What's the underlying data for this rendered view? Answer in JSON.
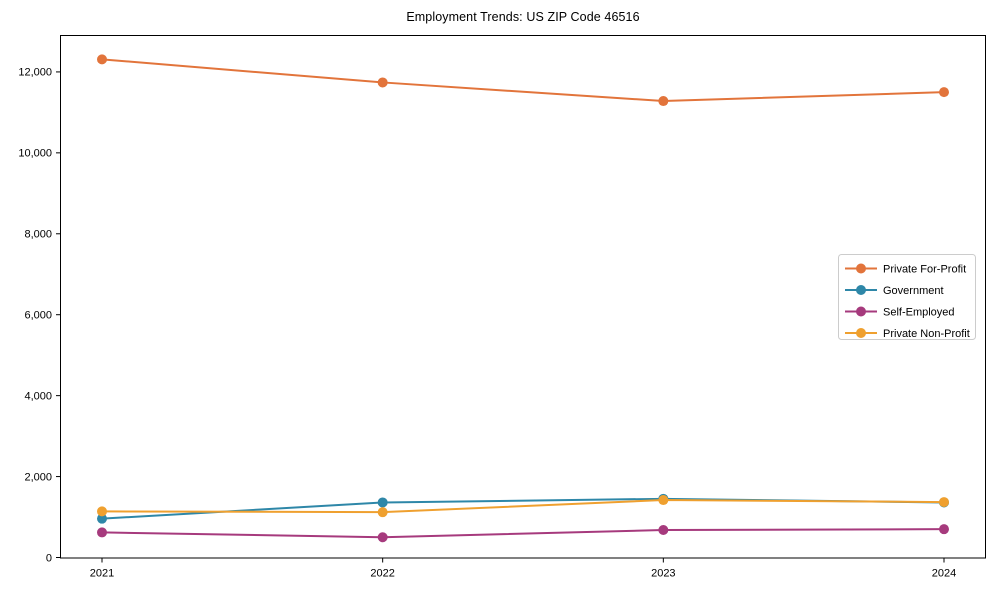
{
  "chart_data": {
    "type": "line",
    "title": "Employment Trends: US ZIP Code 46516",
    "xlabel": "",
    "ylabel": "",
    "x_categories": [
      "2021",
      "2022",
      "2023",
      "2024"
    ],
    "series": [
      {
        "name": "Private For-Profit",
        "color": "#e2743b",
        "values": [
          12310,
          11740,
          11280,
          11500
        ]
      },
      {
        "name": "Government",
        "color": "#2e87a8",
        "values": [
          960,
          1360,
          1450,
          1360
        ]
      },
      {
        "name": "Self-Employed",
        "color": "#a63a7d",
        "values": [
          620,
          500,
          680,
          700
        ]
      },
      {
        "name": "Private Non-Profit",
        "color": "#efa02f",
        "values": [
          1140,
          1120,
          1420,
          1370
        ]
      }
    ],
    "ylim": [
      0,
      12900
    ],
    "yticks": [
      0,
      2000,
      4000,
      6000,
      8000,
      10000,
      12000
    ],
    "ytick_labels": [
      "0",
      "2,000",
      "4,000",
      "6,000",
      "8,000",
      "10,000",
      "12,000"
    ],
    "grid": false,
    "legend_position": "center right",
    "marker": "circle",
    "axis_color": "#000000",
    "tick_label_color": "#000000",
    "legend_border_color": "#cccccc",
    "legend_background": "#ffffff"
  }
}
